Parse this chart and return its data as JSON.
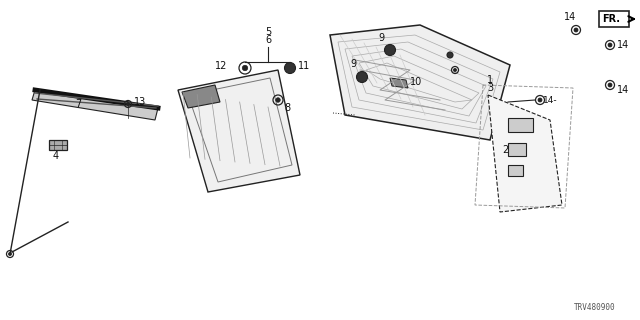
{
  "bg_color": "#ffffff",
  "diagram_id": "TRV480900",
  "lc": "#222222",
  "lc_light": "#888888",
  "fs": 7
}
